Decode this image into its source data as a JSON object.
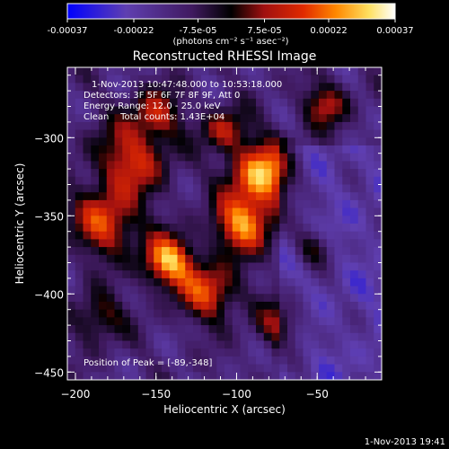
{
  "colorbar": {
    "ticks": [
      "-0.00037",
      "-0.00022",
      "-7.5e-05",
      "7.5e-05",
      "0.00022",
      "0.00037"
    ],
    "tick_values": [
      -0.00037,
      -0.00022,
      -7.5e-05,
      7.5e-05,
      0.00022,
      0.00037
    ],
    "range": [
      -0.00037,
      0.00037
    ],
    "units_label": "(photons cm⁻² s⁻¹ asec⁻²)",
    "colors": [
      "#0000ff",
      "#5f3fb0",
      "#401a60",
      "#000000",
      "#a01010",
      "#e02a00",
      "#ff8800",
      "#ffe060",
      "#ffffff"
    ]
  },
  "chart_data": {
    "type": "heatmap",
    "title": "Reconstructed RHESSI Image",
    "xlabel": "Heliocentric X (arcsec)",
    "ylabel": "Heliocentric Y (arcsec)",
    "xlim": [
      -205,
      -10
    ],
    "ylim": [
      -455,
      -255
    ],
    "xticks": [
      -200,
      -150,
      -100,
      -50
    ],
    "xtick_labels": [
      "−200",
      "−150",
      "−100",
      "−50"
    ],
    "yticks": [
      -450,
      -400,
      -350,
      -300
    ],
    "ytick_labels": [
      "−450",
      "−400",
      "−350",
      "−300"
    ],
    "annotations": {
      "time_range": "1-Nov-2013 10:47:48.000 to 10:53:18.000",
      "detectors": "Detectors: 3F 5F 6F 7F 8F 9F, Att 0",
      "energy": "Energy Range: 12.0 - 25.0 keV",
      "clean": "Clean    Total counts: 1.43E+04",
      "peak": "Position of Peak = [-89,-348]"
    },
    "peak_position": [
      -89,
      -348
    ]
  },
  "footer": {
    "timestamp": "1-Nov-2013 19:41"
  }
}
